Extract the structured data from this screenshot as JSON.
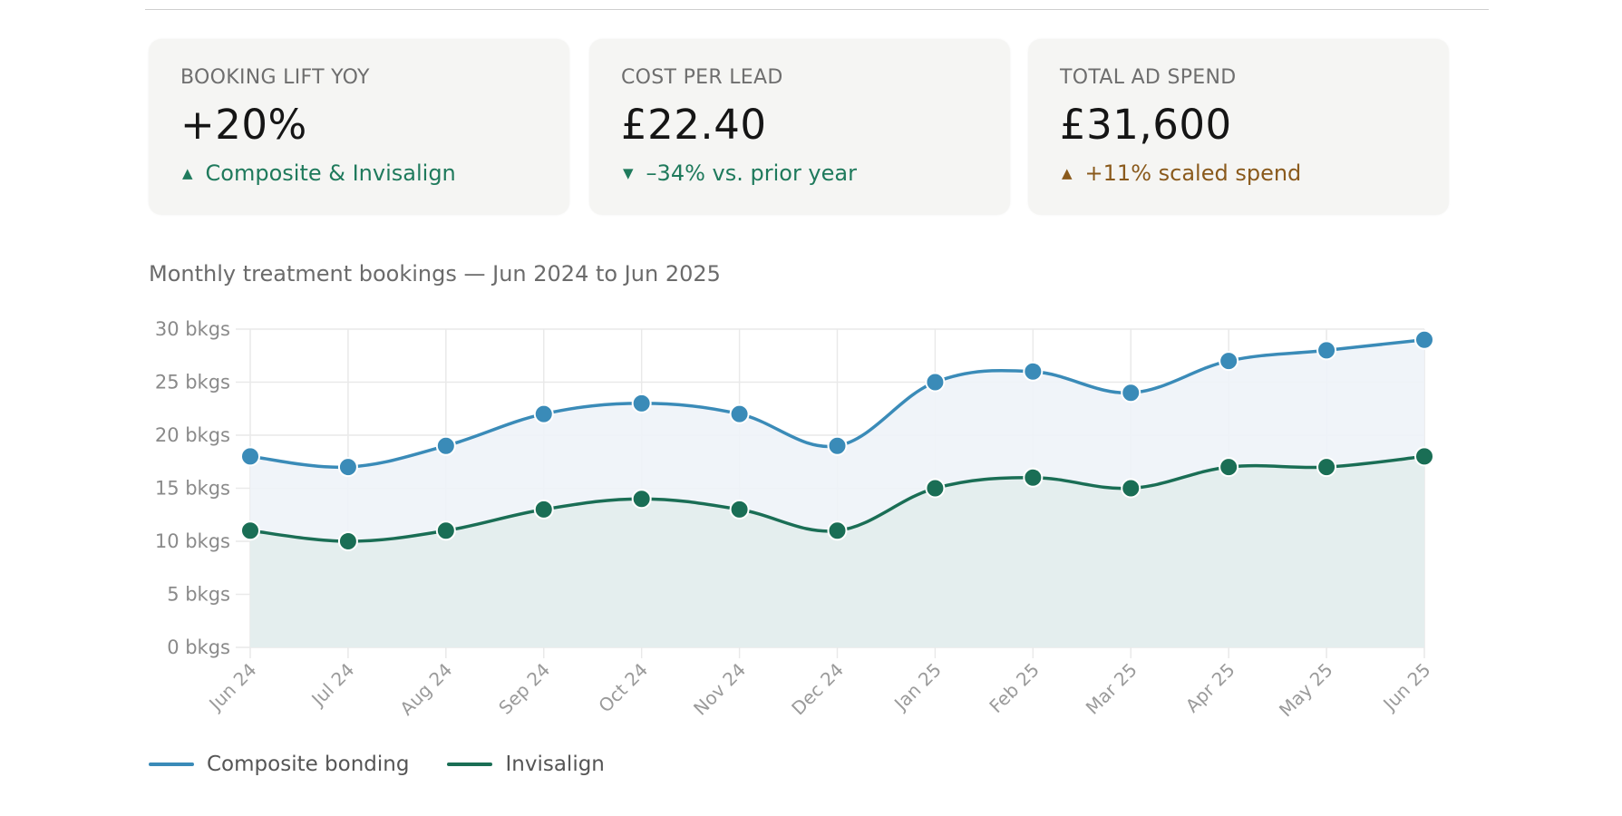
{
  "kpis": [
    {
      "label": "BOOKING LIFT YOY",
      "value": "+20%",
      "delta_icon": "triangle-up-icon",
      "delta_glyph": "▲",
      "delta_text": "Composite & Invisalign",
      "delta_color": "#1f7a5c"
    },
    {
      "label": "COST PER LEAD",
      "value": "£22.40",
      "delta_icon": "triangle-down-icon",
      "delta_glyph": "▼",
      "delta_text": "–34% vs. prior year",
      "delta_color": "#1f7a5c"
    },
    {
      "label": "TOTAL AD SPEND",
      "value": "£31,600",
      "delta_icon": "triangle-up-icon",
      "delta_glyph": "▲",
      "delta_text": "+11% scaled spend",
      "delta_color": "#8a5a1c"
    }
  ],
  "chart_title": "Monthly treatment bookings — Jun 2024 to Jun 2025",
  "chart_data": {
    "type": "area",
    "title": "Monthly treatment bookings — Jun 2024 to Jun 2025",
    "xlabel": "",
    "ylabel": "",
    "categories": [
      "Jun 24",
      "Jul 24",
      "Aug 24",
      "Sep 24",
      "Oct 24",
      "Nov 24",
      "Dec 24",
      "Jan 25",
      "Feb 25",
      "Mar 25",
      "Apr 25",
      "May 25",
      "Jun 25"
    ],
    "ylim": [
      0,
      30
    ],
    "yticks": [
      0,
      5,
      10,
      15,
      20,
      25,
      30
    ],
    "ytick_suffix": " bkgs",
    "grid": true,
    "legend_position": "bottom-left",
    "series": [
      {
        "name": "Composite bonding",
        "color": "#3a8bb8",
        "fill": "#eef3f8",
        "values": [
          18,
          17,
          19,
          22,
          23,
          22,
          19,
          25,
          26,
          24,
          27,
          28,
          29
        ]
      },
      {
        "name": "Invisalign",
        "color": "#1a6e55",
        "fill": "#e2edec",
        "values": [
          11,
          10,
          11,
          13,
          14,
          13,
          11,
          15,
          16,
          15,
          17,
          17,
          18
        ]
      }
    ]
  }
}
